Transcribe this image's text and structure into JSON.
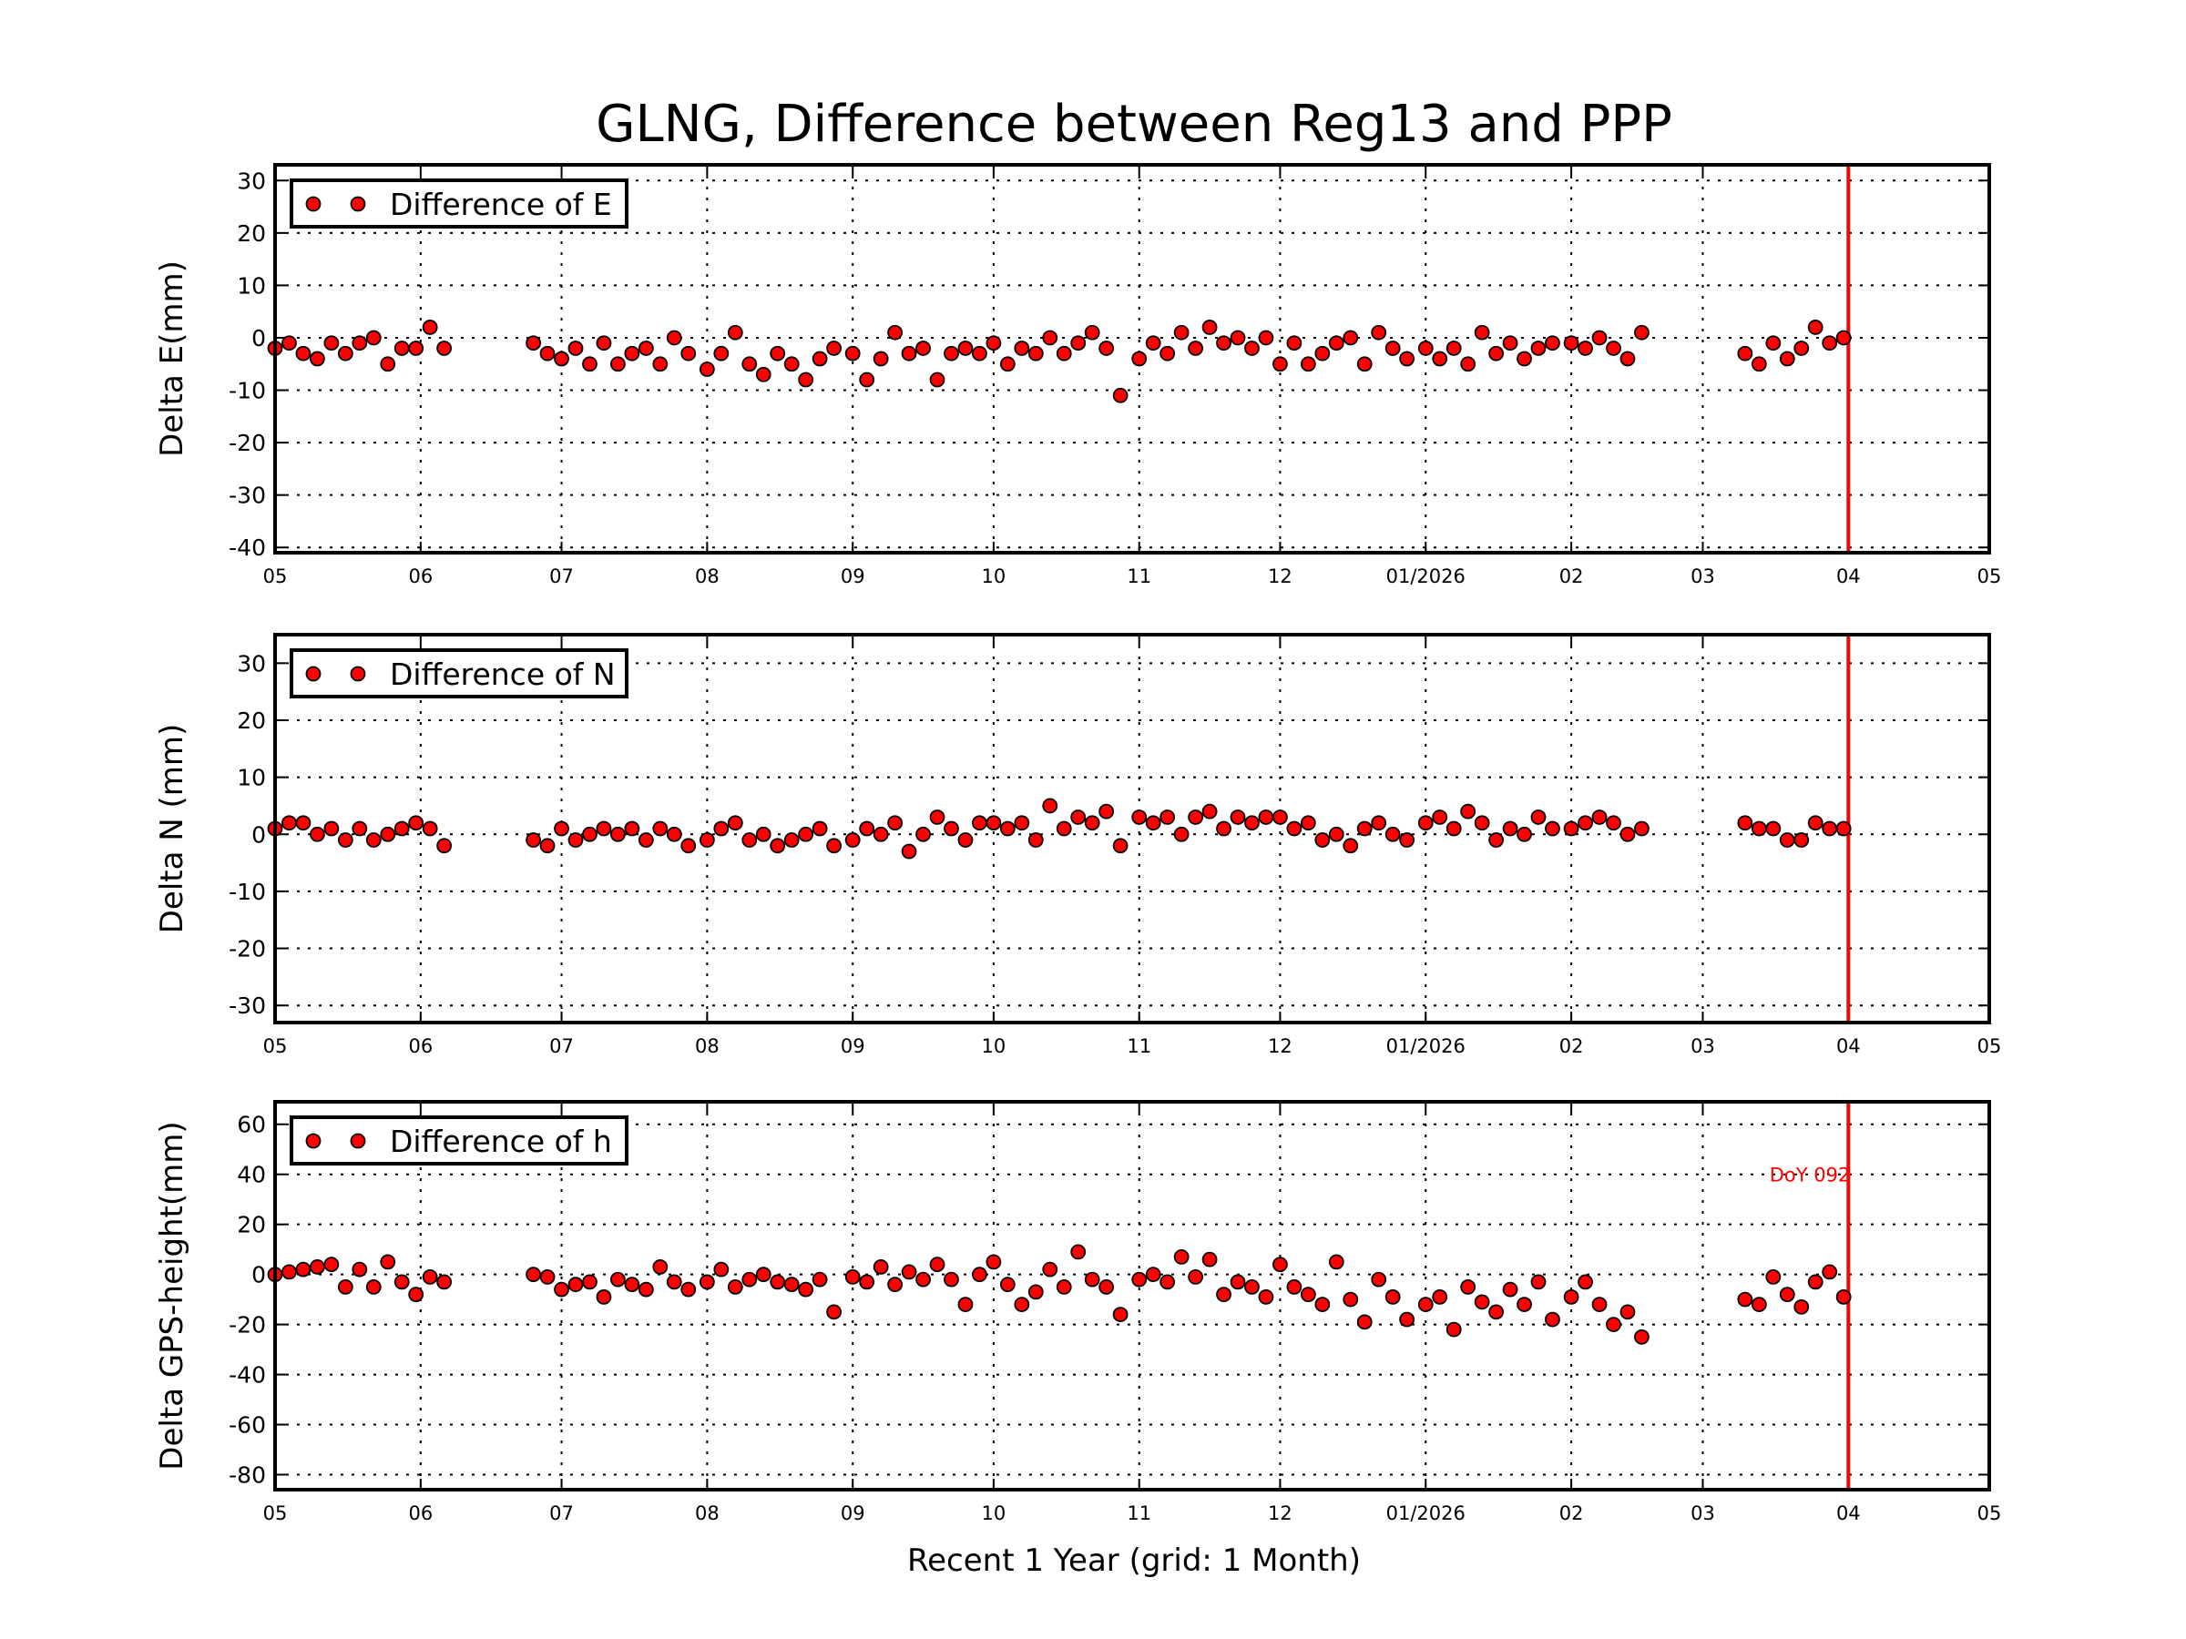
{
  "title": "GLNG, Difference between Reg13 and PPP",
  "colors": {
    "marker": "#ff0000",
    "marker_edge": "#000000",
    "event_line": "#ff0000",
    "annotation": "#ff0000"
  },
  "chart_data": {
    "type": "scatter",
    "xlabel": "Recent 1 Year (grid: 1 Month)",
    "xlim": [
      "2025-05-01",
      "2026-05-01"
    ],
    "x_ticks": [
      "2025-05-01",
      "2025-06-01",
      "2025-07-01",
      "2025-08-01",
      "2025-09-01",
      "2025-10-01",
      "2025-11-01",
      "2025-12-01",
      "2026-01-01",
      "2026-02-01",
      "2026-03-01",
      "2026-04-01",
      "2026-05-01"
    ],
    "x_tick_labels": [
      "05",
      "06",
      "07",
      "08",
      "09",
      "10",
      "11",
      "12",
      "01/2026",
      "02",
      "03",
      "04",
      "05"
    ],
    "grid": true,
    "event_line": {
      "date": "2026-04-01",
      "label": "DoY 092"
    },
    "x": [
      "2025-05-01",
      "2025-05-04",
      "2025-05-07",
      "2025-05-10",
      "2025-05-13",
      "2025-05-16",
      "2025-05-19",
      "2025-05-22",
      "2025-05-25",
      "2025-05-28",
      "2025-05-31",
      "2025-06-03",
      "2025-06-06",
      "2025-06-25",
      "2025-06-28",
      "2025-07-01",
      "2025-07-04",
      "2025-07-07",
      "2025-07-10",
      "2025-07-13",
      "2025-07-16",
      "2025-07-19",
      "2025-07-22",
      "2025-07-25",
      "2025-07-28",
      "2025-08-01",
      "2025-08-04",
      "2025-08-07",
      "2025-08-10",
      "2025-08-13",
      "2025-08-16",
      "2025-08-19",
      "2025-08-22",
      "2025-08-25",
      "2025-08-28",
      "2025-09-01",
      "2025-09-04",
      "2025-09-07",
      "2025-09-10",
      "2025-09-13",
      "2025-09-16",
      "2025-09-19",
      "2025-09-22",
      "2025-09-25",
      "2025-09-28",
      "2025-10-01",
      "2025-10-04",
      "2025-10-07",
      "2025-10-10",
      "2025-10-13",
      "2025-10-16",
      "2025-10-19",
      "2025-10-22",
      "2025-10-25",
      "2025-10-28",
      "2025-11-01",
      "2025-11-04",
      "2025-11-07",
      "2025-11-10",
      "2025-11-13",
      "2025-11-16",
      "2025-11-19",
      "2025-11-22",
      "2025-11-25",
      "2025-11-28",
      "2025-12-01",
      "2025-12-04",
      "2025-12-07",
      "2025-12-10",
      "2025-12-13",
      "2025-12-16",
      "2025-12-19",
      "2025-12-22",
      "2025-12-25",
      "2025-12-28",
      "2026-01-01",
      "2026-01-04",
      "2026-01-07",
      "2026-01-10",
      "2026-01-13",
      "2026-01-16",
      "2026-01-19",
      "2026-01-22",
      "2026-01-25",
      "2026-01-28",
      "2026-02-01",
      "2026-02-04",
      "2026-02-07",
      "2026-02-10",
      "2026-02-13",
      "2026-02-16",
      "2026-03-10",
      "2026-03-13",
      "2026-03-16",
      "2026-03-19",
      "2026-03-22",
      "2026-03-25",
      "2026-03-28",
      "2026-03-31"
    ],
    "panels": [
      {
        "ylabel": "Delta E(mm)",
        "ylim": [
          -41,
          33
        ],
        "y_ticks": [
          -40,
          -30,
          -20,
          -10,
          0,
          10,
          20,
          30
        ],
        "legend": "top-left",
        "series": [
          {
            "name": "Difference of E",
            "values": [
              -2,
              -1,
              -3,
              -4,
              -1,
              -3,
              -1,
              0,
              -5,
              -2,
              -2,
              2,
              -2,
              -1,
              -3,
              -4,
              -2,
              -5,
              -1,
              -5,
              -3,
              -2,
              -5,
              0,
              -3,
              -6,
              -3,
              1,
              -5,
              -7,
              -3,
              -5,
              -8,
              -4,
              -2,
              -3,
              -8,
              -4,
              1,
              -3,
              -2,
              -8,
              -3,
              -2,
              -3,
              -1,
              -5,
              -2,
              -3,
              0,
              -3,
              -1,
              1,
              -2,
              -11,
              -4,
              -1,
              -3,
              1,
              -2,
              2,
              -1,
              0,
              -2,
              0,
              -5,
              -1,
              -5,
              -3,
              -1,
              0,
              -5,
              1,
              -2,
              -4,
              -2,
              -4,
              -2,
              -5,
              1,
              -3,
              -1,
              -4,
              -2,
              -1,
              -1,
              -2,
              0,
              -2,
              -4,
              1,
              -3,
              -5,
              -1,
              -4,
              -2,
              2,
              -1,
              0
            ]
          }
        ]
      },
      {
        "ylabel": "Delta N (mm)",
        "ylim": [
          -33,
          35
        ],
        "y_ticks": [
          -30,
          -20,
          -10,
          0,
          10,
          20,
          30
        ],
        "legend": "top-left",
        "series": [
          {
            "name": "Difference of N",
            "values": [
              1,
              2,
              2,
              0,
              1,
              -1,
              1,
              -1,
              0,
              1,
              2,
              1,
              -2,
              -1,
              -2,
              1,
              -1,
              0,
              1,
              0,
              1,
              -1,
              1,
              0,
              -2,
              -1,
              1,
              2,
              -1,
              0,
              -2,
              -1,
              0,
              1,
              -2,
              -1,
              1,
              0,
              2,
              -3,
              0,
              3,
              1,
              -1,
              2,
              2,
              1,
              2,
              -1,
              5,
              1,
              3,
              2,
              4,
              -2,
              3,
              2,
              3,
              0,
              3,
              4,
              1,
              3,
              2,
              3,
              3,
              1,
              2,
              -1,
              0,
              -2,
              1,
              2,
              0,
              -1,
              2,
              3,
              1,
              4,
              2,
              -1,
              1,
              0,
              3,
              1,
              1,
              2,
              3,
              2,
              0,
              1,
              2,
              1,
              1,
              -1,
              -1,
              2,
              1,
              1
            ]
          }
        ]
      },
      {
        "ylabel": "Delta GPS-height(mm)",
        "ylim": [
          -86,
          69
        ],
        "y_ticks": [
          -80,
          -60,
          -40,
          -20,
          0,
          20,
          40,
          60
        ],
        "legend": "top-left",
        "series": [
          {
            "name": "Difference of h",
            "values": [
              0,
              1,
              2,
              3,
              4,
              -5,
              2,
              -5,
              5,
              -3,
              -8,
              -1,
              -3,
              0,
              -1,
              -6,
              -4,
              -3,
              -9,
              -2,
              -4,
              -6,
              3,
              -3,
              -6,
              -3,
              2,
              -5,
              -2,
              0,
              -3,
              -4,
              -6,
              -2,
              -15,
              -1,
              -3,
              3,
              -4,
              1,
              -2,
              4,
              -2,
              -12,
              0,
              5,
              -4,
              -12,
              -7,
              2,
              -5,
              9,
              -2,
              -5,
              -16,
              -2,
              0,
              -3,
              7,
              -1,
              6,
              -8,
              -3,
              -5,
              -9,
              4,
              -5,
              -8,
              -12,
              5,
              -10,
              -19,
              -2,
              -9,
              -18,
              -12,
              -9,
              -22,
              -5,
              -11,
              -15,
              -6,
              -12,
              -3,
              -18,
              -9,
              -3,
              -12,
              -20,
              -15,
              -25,
              -10,
              -12,
              -1,
              -8,
              -13,
              -3,
              1,
              -9
            ]
          }
        ]
      }
    ]
  }
}
